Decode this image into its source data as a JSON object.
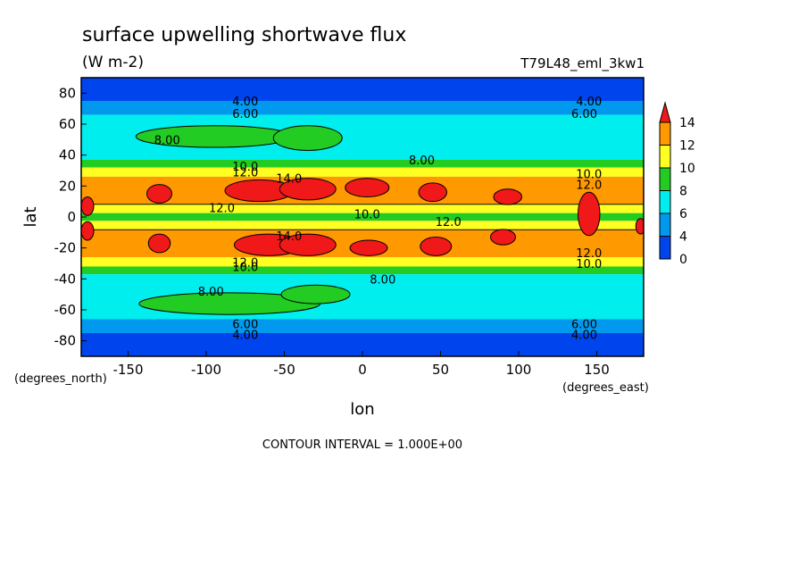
{
  "chart_data": {
    "type": "heatmap",
    "title": "surface upwelling shortwave flux",
    "units": "(W m-2)",
    "run_label": "T79L48_eml_3kw1",
    "xlabel": "lon",
    "ylabel": "lat",
    "xunits": "(degrees_east)",
    "yunits": "(degrees_north)",
    "xlim": [
      -180,
      180
    ],
    "ylim": [
      -90,
      90
    ],
    "x_ticks": [
      -150,
      -100,
      -50,
      0,
      50,
      100,
      150
    ],
    "y_ticks": [
      80,
      60,
      40,
      20,
      0,
      -20,
      -40,
      -60,
      -80
    ],
    "x_tick_labels": [
      "-150",
      "-100",
      "-50",
      "0",
      "50",
      "100",
      "150"
    ],
    "y_tick_labels": [
      "80",
      "60",
      "40",
      "20",
      "0",
      "-20",
      "-40",
      "-60",
      "-80"
    ],
    "footer": "CONTOUR INTERVAL = 1.000E+00",
    "colorbar": {
      "labels": [
        "14",
        "12",
        "10",
        "8",
        "6",
        "4",
        "0"
      ],
      "bins": [
        {
          "from": 14,
          "to": null,
          "color": "#f01818"
        },
        {
          "from": 12,
          "to": 14,
          "color": "#ff9900"
        },
        {
          "from": 10,
          "to": 12,
          "color": "#ffff22"
        },
        {
          "from": 8,
          "to": 10,
          "color": "#22cc22"
        },
        {
          "from": 6,
          "to": 8,
          "color": "#00eeee"
        },
        {
          "from": 4,
          "to": 6,
          "color": "#0099ee"
        },
        {
          "from": 0,
          "to": 4,
          "color": "#0044ee"
        }
      ]
    },
    "zonal_profile": [
      {
        "lat": 90,
        "value": 3.5
      },
      {
        "lat": 80,
        "value": 3.5
      },
      {
        "lat": 75,
        "value": 4.0
      },
      {
        "lat": 70,
        "value": 5.0
      },
      {
        "lat": 66,
        "value": 6.0
      },
      {
        "lat": 60,
        "value": 7.0
      },
      {
        "lat": 50,
        "value": 7.2
      },
      {
        "lat": 40,
        "value": 7.6
      },
      {
        "lat": 37,
        "value": 8.0
      },
      {
        "lat": 33,
        "value": 9.5
      },
      {
        "lat": 30,
        "value": 11.0
      },
      {
        "lat": 26,
        "value": 12.0
      },
      {
        "lat": 20,
        "value": 13.5
      },
      {
        "lat": 10,
        "value": 12.5
      },
      {
        "lat": 5,
        "value": 11.0
      },
      {
        "lat": 0,
        "value": 9.0
      },
      {
        "lat": -5,
        "value": 11.0
      },
      {
        "lat": -10,
        "value": 12.5
      },
      {
        "lat": -20,
        "value": 13.5
      },
      {
        "lat": -26,
        "value": 12.0
      },
      {
        "lat": -30,
        "value": 11.0
      },
      {
        "lat": -33,
        "value": 9.5
      },
      {
        "lat": -37,
        "value": 8.0
      },
      {
        "lat": -40,
        "value": 7.6
      },
      {
        "lat": -50,
        "value": 7.2
      },
      {
        "lat": -60,
        "value": 7.0
      },
      {
        "lat": -66,
        "value": 6.0
      },
      {
        "lat": -70,
        "value": 5.0
      },
      {
        "lat": -75,
        "value": 4.0
      },
      {
        "lat": -90,
        "value": 3.5
      }
    ],
    "contour_labels": [
      {
        "text": "4.00",
        "lon": -75,
        "lat": 75
      },
      {
        "text": "6.00",
        "lon": -75,
        "lat": 67
      },
      {
        "text": "4.00",
        "lon": 145,
        "lat": 75
      },
      {
        "text": "6.00",
        "lon": 142,
        "lat": 67
      },
      {
        "text": "8.00",
        "lon": -125,
        "lat": 50
      },
      {
        "text": "8.00",
        "lon": 38,
        "lat": 37
      },
      {
        "text": "10.0",
        "lon": -75,
        "lat": 33
      },
      {
        "text": "12.0",
        "lon": -75,
        "lat": 29
      },
      {
        "text": "14.0",
        "lon": -47,
        "lat": 25
      },
      {
        "text": "10.0",
        "lon": 145,
        "lat": 28
      },
      {
        "text": "12.0",
        "lon": 145,
        "lat": 21
      },
      {
        "text": "12.0",
        "lon": -90,
        "lat": 6
      },
      {
        "text": "10.0",
        "lon": 3,
        "lat": 2
      },
      {
        "text": "12.0",
        "lon": 55,
        "lat": -3
      },
      {
        "text": "14.0",
        "lon": -47,
        "lat": -12
      },
      {
        "text": "12.0",
        "lon": 145,
        "lat": -23
      },
      {
        "text": "10.0",
        "lon": 145,
        "lat": -30
      },
      {
        "text": "10.0",
        "lon": -75,
        "lat": -32
      },
      {
        "text": "12.0",
        "lon": -75,
        "lat": -29
      },
      {
        "text": "8.00",
        "lon": 13,
        "lat": -40
      },
      {
        "text": "8.00",
        "lon": -97,
        "lat": -48
      },
      {
        "text": "6.00",
        "lon": -75,
        "lat": -69
      },
      {
        "text": "4.00",
        "lon": -75,
        "lat": -76
      },
      {
        "text": "6.00",
        "lon": 142,
        "lat": -69
      },
      {
        "text": "4.00",
        "lon": 142,
        "lat": -76
      }
    ],
    "features": [
      {
        "kind": "max_14",
        "lon": -130,
        "lat": 15,
        "rlon": 8,
        "rlat": 6
      },
      {
        "kind": "max_14",
        "lon": -66,
        "lat": 17,
        "rlon": 22,
        "rlat": 7
      },
      {
        "kind": "max_14",
        "lon": -35,
        "lat": 18,
        "rlon": 18,
        "rlat": 7
      },
      {
        "kind": "max_14",
        "lon": 3,
        "lat": 19,
        "rlon": 14,
        "rlat": 6
      },
      {
        "kind": "max_14",
        "lon": 45,
        "lat": 16,
        "rlon": 9,
        "rlat": 6
      },
      {
        "kind": "max_14",
        "lon": 93,
        "lat": 13,
        "rlon": 9,
        "rlat": 5
      },
      {
        "kind": "max_14",
        "lon": 145,
        "lat": 2,
        "rlon": 7,
        "rlat": 14
      },
      {
        "kind": "max_14",
        "lon": -176,
        "lat": 7,
        "rlon": 4,
        "rlat": 6
      },
      {
        "kind": "max_14",
        "lon": -176,
        "lat": -9,
        "rlon": 4,
        "rlat": 6
      },
      {
        "kind": "max_14",
        "lon": -130,
        "lat": -17,
        "rlon": 7,
        "rlat": 6
      },
      {
        "kind": "max_14",
        "lon": -60,
        "lat": -18,
        "rlon": 22,
        "rlat": 7
      },
      {
        "kind": "max_14",
        "lon": -35,
        "lat": -18,
        "rlon": 18,
        "rlat": 7
      },
      {
        "kind": "max_14",
        "lon": 4,
        "lat": -20,
        "rlon": 12,
        "rlat": 5
      },
      {
        "kind": "max_14",
        "lon": 47,
        "lat": -19,
        "rlon": 10,
        "rlat": 6
      },
      {
        "kind": "max_14",
        "lon": 90,
        "lat": -13,
        "rlon": 8,
        "rlat": 5
      },
      {
        "kind": "max_14",
        "lon": 178,
        "lat": -6,
        "rlon": 3,
        "rlat": 5
      },
      {
        "kind": "land_8_north",
        "lon": -95,
        "lat": 52,
        "rlon": 50,
        "rlat": 7
      },
      {
        "kind": "land_8_north",
        "lon": -35,
        "lat": 51,
        "rlon": 22,
        "rlat": 8
      },
      {
        "kind": "land_8_south",
        "lon": -85,
        "lat": -56,
        "rlon": 58,
        "rlat": 7
      },
      {
        "kind": "land_8_south",
        "lon": -30,
        "lat": -50,
        "rlon": 22,
        "rlat": 6
      }
    ]
  }
}
